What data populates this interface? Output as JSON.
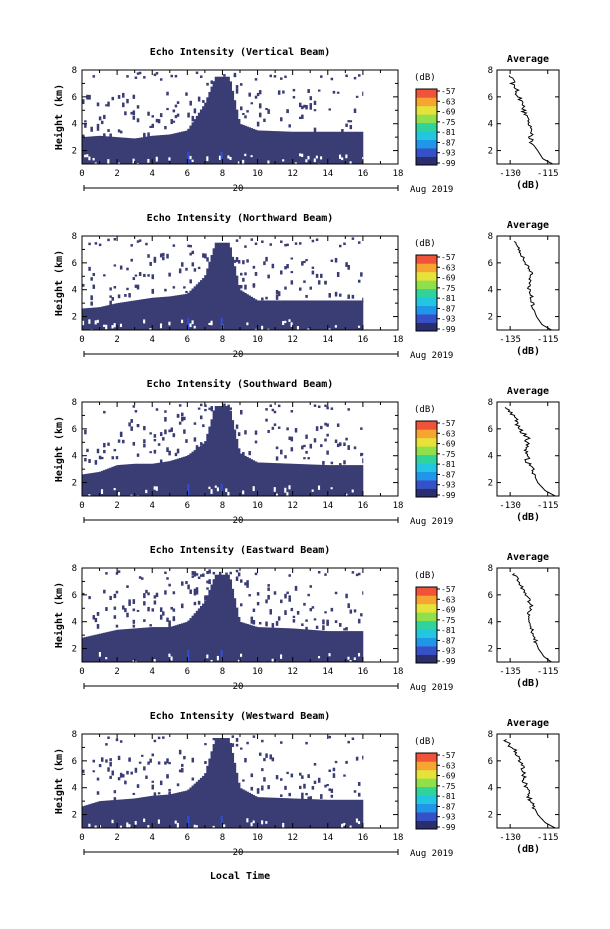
{
  "figure": {
    "date_label": "Aug 2019",
    "day_label": "20",
    "x_axis_title": "Local Time",
    "y_axis_title": "Height (km)",
    "colorbar_unit": "(dB)",
    "avg_title": "Average",
    "avg_xlabel": "(dB)"
  },
  "colors": {
    "echo_fill": "#3a3d74",
    "low_echo": "#2f4fd6",
    "colorbar": [
      "#2a2e6e",
      "#3550c8",
      "#1f96e8",
      "#22c6e0",
      "#30d39c",
      "#8fe04a",
      "#e6e23a",
      "#f7a531",
      "#f1533a"
    ]
  },
  "chart_data": [
    {
      "type": "heatmap",
      "title": "Echo Intensity (Vertical Beam)",
      "xlabel": "",
      "ylabel": "Height (km)",
      "xlim": [
        0,
        18
      ],
      "ylim": [
        1,
        8
      ],
      "xticks": [
        "0",
        "2",
        "4",
        "6",
        "8",
        "10",
        "12",
        "14",
        "16",
        "18"
      ],
      "yticks": [
        "2",
        "4",
        "6",
        "8"
      ],
      "colorbar_ticks": [
        "-57",
        "-63",
        "-69",
        "-75",
        "-81",
        "-87",
        "-93",
        "-99"
      ],
      "top_km": [
        [
          0,
          3.0
        ],
        [
          1,
          3.1
        ],
        [
          2,
          3.0
        ],
        [
          3,
          2.9
        ],
        [
          4,
          3.1
        ],
        [
          5,
          3.2
        ],
        [
          6,
          3.5
        ],
        [
          7,
          5.5
        ],
        [
          7.6,
          7.5
        ],
        [
          8.4,
          7.5
        ],
        [
          9,
          4.0
        ],
        [
          10,
          3.5
        ],
        [
          12,
          3.4
        ],
        [
          14,
          3.4
        ],
        [
          16,
          3.4
        ]
      ],
      "colorbar_range": [
        -99,
        -57
      ],
      "avg_xticks": [
        "-130",
        "-115"
      ],
      "avg_profile": {
        "x": [
          -113,
          -117,
          -119,
          -121,
          -122,
          -122,
          -124,
          -125,
          -127,
          -130
        ],
        "y": [
          1.0,
          1.4,
          2.0,
          2.5,
          3.0,
          3.8,
          4.6,
          5.3,
          6.2,
          7.5
        ]
      }
    },
    {
      "type": "heatmap",
      "title": "Echo Intensity (Northward Beam)",
      "xlabel": "",
      "ylabel": "Height (km)",
      "xlim": [
        0,
        18
      ],
      "ylim": [
        1,
        8
      ],
      "xticks": [
        "0",
        "2",
        "4",
        "6",
        "8",
        "10",
        "12",
        "14",
        "16",
        "18"
      ],
      "yticks": [
        "2",
        "4",
        "6",
        "8"
      ],
      "colorbar_ticks": [
        "-57",
        "-63",
        "-69",
        "-75",
        "-81",
        "-87",
        "-93",
        "-99"
      ],
      "top_km": [
        [
          0,
          2.6
        ],
        [
          1,
          2.7
        ],
        [
          2,
          3.0
        ],
        [
          3,
          3.2
        ],
        [
          4,
          3.4
        ],
        [
          5,
          3.5
        ],
        [
          6,
          3.7
        ],
        [
          7,
          5.0
        ],
        [
          7.6,
          7.5
        ],
        [
          8.4,
          7.5
        ],
        [
          9,
          4.0
        ],
        [
          10,
          3.2
        ],
        [
          12,
          3.2
        ],
        [
          14,
          3.2
        ],
        [
          16,
          3.2
        ]
      ],
      "colorbar_range": [
        -99,
        -57
      ],
      "avg_xticks": [
        "-135",
        "-115"
      ],
      "avg_profile": {
        "x": [
          -113,
          -118,
          -121,
          -123,
          -124,
          -125,
          -124,
          -126,
          -129,
          -132
        ],
        "y": [
          1.0,
          1.4,
          2.0,
          2.8,
          3.6,
          4.4,
          5.2,
          5.8,
          6.6,
          7.5
        ]
      }
    },
    {
      "type": "heatmap",
      "title": "Echo Intensity (Southward Beam)",
      "xlabel": "",
      "ylabel": "Height (km)",
      "xlim": [
        0,
        18
      ],
      "ylim": [
        1,
        8
      ],
      "xticks": [
        "0",
        "2",
        "4",
        "6",
        "8",
        "10",
        "12",
        "14",
        "16",
        "18"
      ],
      "yticks": [
        "2",
        "4",
        "6",
        "8"
      ],
      "colorbar_ticks": [
        "-57",
        "-63",
        "-69",
        "-75",
        "-81",
        "-87",
        "-93",
        "-99"
      ],
      "top_km": [
        [
          0,
          2.6
        ],
        [
          1,
          2.8
        ],
        [
          2,
          3.3
        ],
        [
          3,
          3.4
        ],
        [
          4,
          3.4
        ],
        [
          5,
          3.6
        ],
        [
          6,
          4.0
        ],
        [
          7,
          5.0
        ],
        [
          7.6,
          7.7
        ],
        [
          8.4,
          7.7
        ],
        [
          9,
          4.2
        ],
        [
          10,
          3.5
        ],
        [
          12,
          3.4
        ],
        [
          14,
          3.3
        ],
        [
          16,
          3.3
        ]
      ],
      "colorbar_range": [
        -99,
        -57
      ],
      "avg_xticks": [
        "-130",
        "-115"
      ],
      "avg_profile": {
        "x": [
          -112,
          -116,
          -119,
          -121,
          -123,
          -124,
          -123,
          -126,
          -128,
          -131
        ],
        "y": [
          1.0,
          1.4,
          2.0,
          2.8,
          3.6,
          4.5,
          5.3,
          6.0,
          6.8,
          7.5
        ]
      }
    },
    {
      "type": "heatmap",
      "title": "Echo Intensity (Eastward Beam)",
      "xlabel": "",
      "ylabel": "Height (km)",
      "xlim": [
        0,
        18
      ],
      "ylim": [
        1,
        8
      ],
      "xticks": [
        "0",
        "2",
        "4",
        "6",
        "8",
        "10",
        "12",
        "14",
        "16",
        "18"
      ],
      "yticks": [
        "2",
        "4",
        "6",
        "8"
      ],
      "colorbar_ticks": [
        "-57",
        "-63",
        "-69",
        "-75",
        "-81",
        "-87",
        "-93",
        "-99"
      ],
      "top_km": [
        [
          0,
          2.8
        ],
        [
          1,
          3.1
        ],
        [
          2,
          3.4
        ],
        [
          3,
          3.5
        ],
        [
          4,
          3.6
        ],
        [
          5,
          3.6
        ],
        [
          6,
          4.0
        ],
        [
          7,
          5.5
        ],
        [
          7.6,
          7.5
        ],
        [
          8.4,
          7.5
        ],
        [
          9,
          4.0
        ],
        [
          10,
          3.6
        ],
        [
          12,
          3.5
        ],
        [
          14,
          3.3
        ],
        [
          16,
          3.3
        ]
      ],
      "colorbar_range": [
        -99,
        -57
      ],
      "avg_xticks": [
        "-135",
        "-115"
      ],
      "avg_profile": {
        "x": [
          -113,
          -117,
          -120,
          -122,
          -124,
          -125,
          -124,
          -126,
          -129,
          -133
        ],
        "y": [
          1.0,
          1.4,
          2.0,
          2.8,
          3.6,
          4.4,
          5.2,
          5.9,
          6.7,
          7.5
        ]
      }
    },
    {
      "type": "heatmap",
      "title": "Echo Intensity (Westward Beam)",
      "xlabel": "Local Time",
      "ylabel": "Height (km)",
      "xlim": [
        0,
        18
      ],
      "ylim": [
        1,
        8
      ],
      "xticks": [
        "0",
        "2",
        "4",
        "6",
        "8",
        "10",
        "12",
        "14",
        "16",
        "18"
      ],
      "yticks": [
        "2",
        "4",
        "6",
        "8"
      ],
      "colorbar_ticks": [
        "-57",
        "-63",
        "-69",
        "-75",
        "-81",
        "-87",
        "-93",
        "-99"
      ],
      "top_km": [
        [
          0,
          2.6
        ],
        [
          1,
          3.0
        ],
        [
          2,
          3.1
        ],
        [
          3,
          3.2
        ],
        [
          4,
          3.4
        ],
        [
          5,
          3.5
        ],
        [
          6,
          3.8
        ],
        [
          7,
          5.0
        ],
        [
          7.6,
          7.7
        ],
        [
          8.4,
          7.7
        ],
        [
          9,
          4.0
        ],
        [
          10,
          3.3
        ],
        [
          12,
          3.2
        ],
        [
          14,
          3.1
        ],
        [
          16,
          3.1
        ]
      ],
      "colorbar_range": [
        -99,
        -57
      ],
      "avg_xticks": [
        "-130",
        "-115"
      ],
      "avg_profile": {
        "x": [
          -112,
          -116,
          -119,
          -121,
          -123,
          -124,
          -125,
          -126,
          -128,
          -132
        ],
        "y": [
          1.0,
          1.4,
          2.0,
          2.8,
          3.6,
          4.4,
          5.2,
          5.9,
          6.7,
          7.5
        ]
      }
    }
  ]
}
